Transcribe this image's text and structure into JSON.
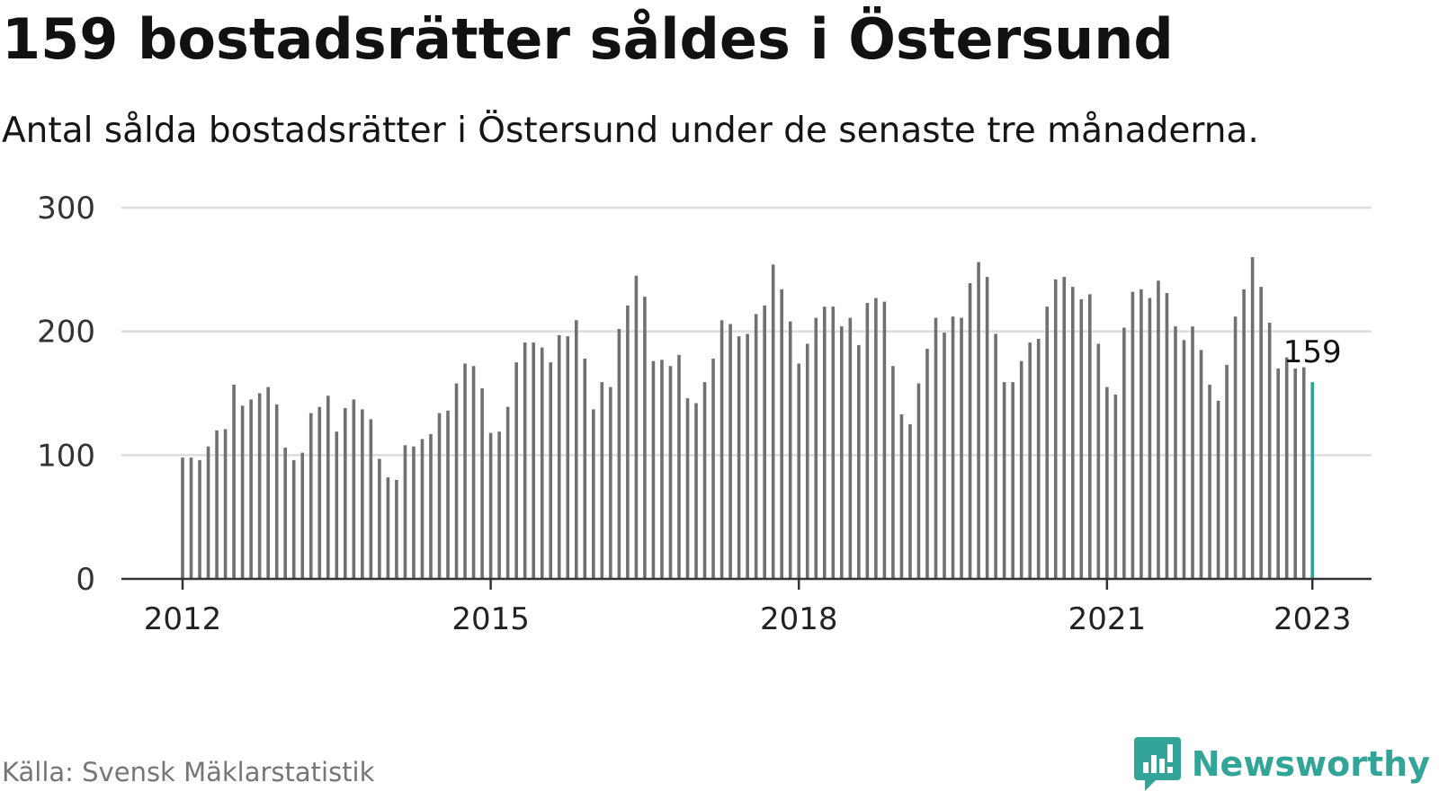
{
  "title": "159 bostadsrätter såldes i Östersund",
  "subtitle": "Antal sålda bostadsrätter i Östersund under de senaste tre månaderna.",
  "source": "Källa: Svensk Mäklarstatistik",
  "brand": {
    "name": "Newsworthy",
    "icon": "newsworthy-logo-icon",
    "color": "#33a598"
  },
  "colors": {
    "bar": "#707074",
    "highlight": "#2aa497",
    "grid": "#dddddd",
    "axis": "#333333"
  },
  "chart_data": {
    "type": "bar",
    "title": "159 bostadsrätter såldes i Östersund",
    "xlabel": "",
    "ylabel": "",
    "ylim": [
      0,
      300
    ],
    "yticks": [
      0,
      100,
      200,
      300
    ],
    "xticks": [
      "2012",
      "2015",
      "2018",
      "2021",
      "2023"
    ],
    "grid": true,
    "x_start": "2012-01",
    "x_end": "2023-01",
    "values": [
      98,
      98,
      96,
      107,
      120,
      121,
      157,
      140,
      145,
      150,
      155,
      141,
      106,
      96,
      102,
      134,
      139,
      148,
      119,
      138,
      145,
      137,
      129,
      97,
      82,
      80,
      108,
      107,
      113,
      117,
      134,
      136,
      158,
      174,
      172,
      154,
      118,
      119,
      139,
      175,
      191,
      191,
      187,
      175,
      197,
      196,
      209,
      178,
      137,
      159,
      155,
      202,
      221,
      245,
      228,
      176,
      177,
      172,
      181,
      146,
      142,
      159,
      178,
      209,
      206,
      196,
      198,
      214,
      221,
      254,
      234,
      208,
      174,
      190,
      211,
      220,
      220,
      204,
      211,
      189,
      223,
      227,
      224,
      172,
      133,
      125,
      158,
      186,
      211,
      199,
      212,
      211,
      239,
      256,
      244,
      198,
      159,
      159,
      176,
      191,
      194,
      220,
      242,
      244,
      236,
      226,
      230,
      190,
      155,
      149,
      203,
      232,
      234,
      227,
      241,
      231,
      204,
      193,
      204,
      185,
      157,
      144,
      173,
      212,
      234,
      260,
      236,
      207,
      170,
      179,
      170,
      171,
      159
    ],
    "highlight_label": "159"
  }
}
